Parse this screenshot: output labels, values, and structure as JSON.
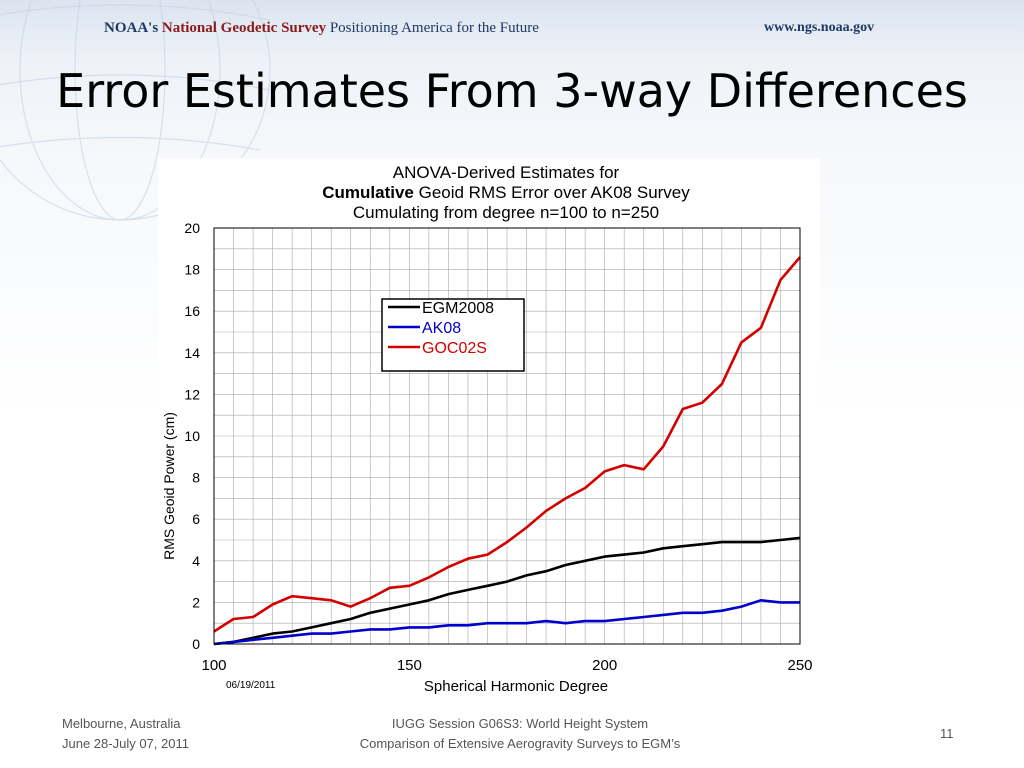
{
  "header": {
    "org": "NOAA's",
    "survey": "National Geodetic Survey",
    "tagline": "Positioning America for the Future",
    "url": "www.ngs.noaa.gov"
  },
  "slide": {
    "title": "Error Estimates From 3-way Differences"
  },
  "footer": {
    "location": "Melbourne, Australia",
    "dates": "June 28-July 07, 2011",
    "session": "IUGG Session G06S3: World Height System",
    "talk": "Comparison of Extensive Aerogravity Surveys to EGM’s",
    "page": "11"
  },
  "chart_data": {
    "type": "line",
    "title_line1": "ANOVA-Derived Estimates for",
    "title_bold": "Cumulative",
    "title_line2_rest": " Geoid RMS Error over AK08 Survey",
    "title_line3": "Cumulating from degree n=100 to n=250",
    "xlabel": "Spherical Harmonic Degree",
    "ylabel": "RMS Geoid Power (cm)",
    "date_stamp": "06/19/2011",
    "xlim": [
      100,
      250
    ],
    "ylim": [
      0,
      20
    ],
    "xticks": [
      100,
      150,
      200,
      250
    ],
    "yticks": [
      0,
      2,
      4,
      6,
      8,
      10,
      12,
      14,
      16,
      18,
      20
    ],
    "grid": true,
    "legend_position": "upper-left",
    "x": [
      100,
      105,
      110,
      115,
      120,
      125,
      130,
      135,
      140,
      145,
      150,
      155,
      160,
      165,
      170,
      175,
      180,
      185,
      190,
      195,
      200,
      205,
      210,
      215,
      220,
      225,
      230,
      235,
      240,
      245,
      250
    ],
    "series": [
      {
        "name": "EGM2008",
        "color": "#000000",
        "values": [
          0.0,
          0.1,
          0.3,
          0.5,
          0.6,
          0.8,
          1.0,
          1.2,
          1.5,
          1.7,
          1.9,
          2.1,
          2.4,
          2.6,
          2.8,
          3.0,
          3.3,
          3.5,
          3.8,
          4.0,
          4.2,
          4.3,
          4.4,
          4.6,
          4.7,
          4.8,
          4.9,
          4.9,
          4.9,
          5.0,
          5.1
        ]
      },
      {
        "name": "AK08",
        "color": "#0000cc",
        "values": [
          0.0,
          0.1,
          0.2,
          0.3,
          0.4,
          0.5,
          0.5,
          0.6,
          0.7,
          0.7,
          0.8,
          0.8,
          0.9,
          0.9,
          1.0,
          1.0,
          1.0,
          1.1,
          1.0,
          1.1,
          1.1,
          1.2,
          1.3,
          1.4,
          1.5,
          1.5,
          1.6,
          1.8,
          2.1,
          2.0,
          2.0
        ]
      },
      {
        "name": "GOC02S",
        "color": "#d40000",
        "values": [
          0.6,
          1.2,
          1.3,
          1.9,
          2.3,
          2.2,
          2.1,
          1.8,
          2.2,
          2.7,
          2.8,
          3.2,
          3.7,
          4.1,
          4.3,
          4.9,
          5.6,
          6.4,
          7.0,
          7.5,
          8.3,
          8.6,
          8.4,
          9.5,
          11.3,
          11.6,
          12.5,
          14.5,
          15.2,
          17.5,
          18.6
        ]
      }
    ]
  }
}
